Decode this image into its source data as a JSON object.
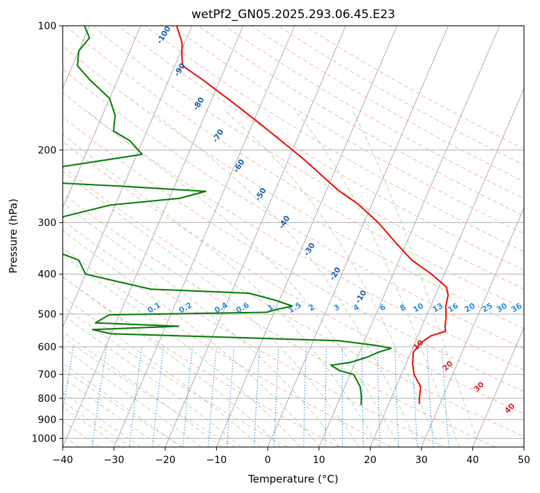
{
  "chart_data": {
    "type": "line",
    "title": "wetPf2_GN05.2025.293.06.45.E23",
    "xlabel": "Temperature (°C)",
    "ylabel": "Pressure (hPa)",
    "xlim": [
      -40,
      50
    ],
    "ylim": [
      1050,
      100
    ],
    "x_ticks": [
      -40,
      -30,
      -20,
      -10,
      0,
      10,
      20,
      30,
      40,
      50
    ],
    "y_ticks": [
      100,
      200,
      300,
      400,
      500,
      600,
      700,
      800,
      900,
      1000
    ],
    "skew_offset_c_per_decade": 34.5,
    "dry_adiabat_labels": [
      "-100",
      "-90",
      "-80",
      "-70",
      "-60",
      "-50",
      "-40",
      "-30",
      "-20",
      "-10"
    ],
    "mixing_ratio_labels": [
      "0.1",
      "0.2",
      "0.4",
      "0.6",
      "1",
      "1.5",
      "2",
      "3",
      "4",
      "6",
      "8",
      "10",
      "13",
      "16",
      "20",
      "25",
      "30",
      "36"
    ],
    "moist_adiabat_labels": [
      "10",
      "20",
      "30",
      "40"
    ],
    "series": [
      {
        "name": "Temperature",
        "color": "#e8120c",
        "points": [
          [
            826,
            26.0
          ],
          [
            800,
            25.5
          ],
          [
            750,
            24.8
          ],
          [
            700,
            22.5
          ],
          [
            660,
            21.3
          ],
          [
            620,
            20.5
          ],
          [
            590,
            21.0
          ],
          [
            565,
            22.5
          ],
          [
            550,
            25.0
          ],
          [
            535,
            24.5
          ],
          [
            510,
            24.0
          ],
          [
            480,
            23.0
          ],
          [
            450,
            22.5
          ],
          [
            430,
            21.5
          ],
          [
            400,
            17.5
          ],
          [
            370,
            12.5
          ],
          [
            340,
            8.5
          ],
          [
            300,
            2.8
          ],
          [
            270,
            -2.8
          ],
          [
            250,
            -7.8
          ],
          [
            230,
            -12.3
          ],
          [
            210,
            -17.2
          ],
          [
            190,
            -23.0
          ],
          [
            170,
            -29.5
          ],
          [
            150,
            -37.0
          ],
          [
            135,
            -43.5
          ],
          [
            125,
            -48.5
          ],
          [
            118,
            -49.5
          ],
          [
            110,
            -50.5
          ],
          [
            100,
            -53.0
          ]
        ]
      },
      {
        "name": "Dewpoint",
        "color": "#0a7c0a",
        "points": [
          [
            830,
            14.7
          ],
          [
            790,
            14.0
          ],
          [
            750,
            13.0
          ],
          [
            700,
            10.7
          ],
          [
            685,
            7.6
          ],
          [
            665,
            5.5
          ],
          [
            655,
            9.0
          ],
          [
            635,
            12.0
          ],
          [
            620,
            13.5
          ],
          [
            605,
            15.8
          ],
          [
            595,
            12.5
          ],
          [
            580,
            5.0
          ],
          [
            570,
            -15.0
          ],
          [
            558,
            -40.0
          ],
          [
            545,
            -44.0
          ],
          [
            535,
            -27.5
          ],
          [
            525,
            -44.0
          ],
          [
            502,
            -42.0
          ],
          [
            495,
            -11.5
          ],
          [
            488,
            -10.0
          ],
          [
            478,
            -7.0
          ],
          [
            462,
            -11.0
          ],
          [
            445,
            -16.5
          ],
          [
            435,
            -36.0
          ],
          [
            400,
            -50.0
          ],
          [
            370,
            -52.5
          ],
          [
            345,
            -60.0
          ],
          [
            320,
            -63.0
          ],
          [
            290,
            -59.0
          ],
          [
            272,
            -51.0
          ],
          [
            262,
            -38.0
          ],
          [
            252,
            -33.5
          ],
          [
            245,
            -50.0
          ],
          [
            238,
            -70.0
          ],
          [
            228,
            -73.5
          ],
          [
            220,
            -64.0
          ],
          [
            205,
            -49.0
          ],
          [
            190,
            -52.5
          ],
          [
            180,
            -56.5
          ],
          [
            165,
            -57.5
          ],
          [
            150,
            -60.0
          ],
          [
            135,
            -65.5
          ],
          [
            125,
            -69.0
          ],
          [
            115,
            -70.0
          ],
          [
            107,
            -69.0
          ],
          [
            100,
            -71.0
          ]
        ]
      }
    ]
  }
}
